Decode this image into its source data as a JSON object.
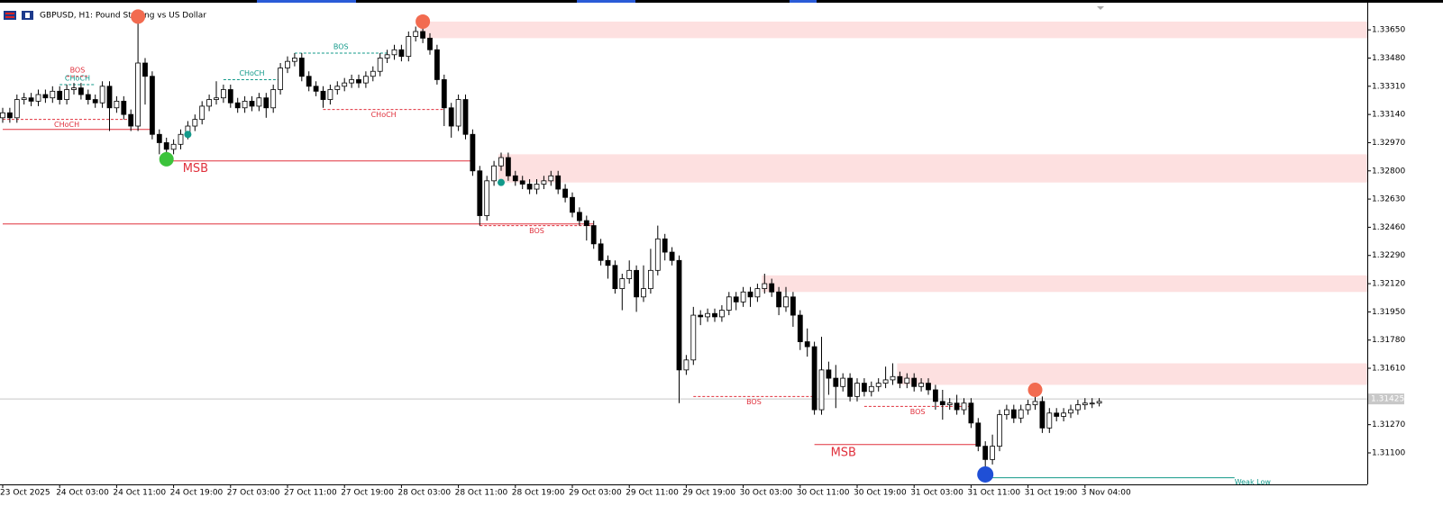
{
  "chart_data": {
    "type": "candlestick",
    "title": "GBPUSD, H1: Pound Sterling vs US Dollar",
    "ylim": [
      1.3091,
      1.3383
    ],
    "yticks": [
      {
        "value": 1.3365,
        "label": "1.33650"
      },
      {
        "value": 1.3348,
        "label": "1.33480"
      },
      {
        "value": 1.3331,
        "label": "1.33310"
      },
      {
        "value": 1.3314,
        "label": "1.33140"
      },
      {
        "value": 1.3297,
        "label": "1.32970"
      },
      {
        "value": 1.328,
        "label": "1.32800"
      },
      {
        "value": 1.3263,
        "label": "1.32630"
      },
      {
        "value": 1.3246,
        "label": "1.32460"
      },
      {
        "value": 1.3229,
        "label": "1.32290"
      },
      {
        "value": 1.3212,
        "label": "1.32120"
      },
      {
        "value": 1.3195,
        "label": "1.31950"
      },
      {
        "value": 1.3178,
        "label": "1.31780"
      },
      {
        "value": 1.3161,
        "label": "1.31610"
      },
      {
        "value": 1.3127,
        "label": "1.31270"
      },
      {
        "value": 1.311,
        "label": "1.31100"
      }
    ],
    "xticks": [
      {
        "value": 0,
        "label": "23 Oct 2025"
      },
      {
        "value": 8,
        "label": "24 Oct 03:00"
      },
      {
        "value": 16,
        "label": "24 Oct 11:00"
      },
      {
        "value": 24,
        "label": "24 Oct 19:00"
      },
      {
        "value": 32,
        "label": "27 Oct 03:00"
      },
      {
        "value": 40,
        "label": "27 Oct 11:00"
      },
      {
        "value": 48,
        "label": "27 Oct 19:00"
      },
      {
        "value": 56,
        "label": "28 Oct 03:00"
      },
      {
        "value": 64,
        "label": "28 Oct 11:00"
      },
      {
        "value": 72,
        "label": "28 Oct 19:00"
      },
      {
        "value": 80,
        "label": "29 Oct 03:00"
      },
      {
        "value": 88,
        "label": "29 Oct 11:00"
      },
      {
        "value": 96,
        "label": "29 Oct 19:00"
      },
      {
        "value": 104,
        "label": "30 Oct 03:00"
      },
      {
        "value": 112,
        "label": "30 Oct 11:00"
      },
      {
        "value": 120,
        "label": "30 Oct 19:00"
      },
      {
        "value": 128,
        "label": "31 Oct 03:00"
      },
      {
        "value": 136,
        "label": "31 Oct 11:00"
      },
      {
        "value": 144,
        "label": "31 Oct 19:00"
      },
      {
        "value": 152,
        "label": "3 Nov 04:00"
      }
    ],
    "current_price": 1.31425,
    "ohlc": [
      [
        1.3312,
        1.3318,
        1.3309,
        1.3315
      ],
      [
        1.3315,
        1.3318,
        1.3309,
        1.3312
      ],
      [
        1.3312,
        1.3326,
        1.3309,
        1.3323
      ],
      [
        1.3323,
        1.3327,
        1.332,
        1.3324
      ],
      [
        1.3324,
        1.3327,
        1.3319,
        1.3322
      ],
      [
        1.3322,
        1.3329,
        1.3319,
        1.3326
      ],
      [
        1.3326,
        1.3329,
        1.3321,
        1.3324
      ],
      [
        1.3324,
        1.3331,
        1.3321,
        1.3328
      ],
      [
        1.3328,
        1.3331,
        1.332,
        1.3323
      ],
      [
        1.3323,
        1.3332,
        1.332,
        1.3329
      ],
      [
        1.3329,
        1.3333,
        1.3326,
        1.333
      ],
      [
        1.333,
        1.3333,
        1.3323,
        1.3326
      ],
      [
        1.3326,
        1.3329,
        1.332,
        1.3323
      ],
      [
        1.3323,
        1.3326,
        1.3318,
        1.3321
      ],
      [
        1.3321,
        1.3334,
        1.3318,
        1.3331
      ],
      [
        1.3331,
        1.3334,
        1.3304,
        1.3318
      ],
      [
        1.3318,
        1.3325,
        1.3315,
        1.3322
      ],
      [
        1.3322,
        1.3325,
        1.3311,
        1.3314
      ],
      [
        1.3314,
        1.3317,
        1.3304,
        1.3307
      ],
      [
        1.3307,
        1.3375,
        1.3304,
        1.3345
      ],
      [
        1.3345,
        1.3348,
        1.332,
        1.3337
      ],
      [
        1.3337,
        1.334,
        1.3299,
        1.3302
      ],
      [
        1.3302,
        1.3305,
        1.329,
        1.3297
      ],
      [
        1.3297,
        1.33,
        1.3288,
        1.3293
      ],
      [
        1.3293,
        1.3299,
        1.329,
        1.3296
      ],
      [
        1.3296,
        1.3305,
        1.3293,
        1.3302
      ],
      [
        1.3302,
        1.331,
        1.3299,
        1.3307
      ],
      [
        1.3307,
        1.3314,
        1.3304,
        1.3311
      ],
      [
        1.3311,
        1.3322,
        1.3308,
        1.3319
      ],
      [
        1.3319,
        1.3326,
        1.3316,
        1.3323
      ],
      [
        1.3323,
        1.3334,
        1.332,
        1.3324
      ],
      [
        1.3324,
        1.3332,
        1.3321,
        1.3329
      ],
      [
        1.3329,
        1.3332,
        1.3318,
        1.3321
      ],
      [
        1.3321,
        1.3324,
        1.3315,
        1.3318
      ],
      [
        1.3318,
        1.3325,
        1.3315,
        1.3322
      ],
      [
        1.3322,
        1.3325,
        1.3316,
        1.3319
      ],
      [
        1.3319,
        1.3327,
        1.3316,
        1.3324
      ],
      [
        1.3324,
        1.3327,
        1.3312,
        1.3318
      ],
      [
        1.3318,
        1.3332,
        1.3315,
        1.3329
      ],
      [
        1.3329,
        1.3345,
        1.3326,
        1.3342
      ],
      [
        1.3342,
        1.3349,
        1.3339,
        1.3346
      ],
      [
        1.3346,
        1.3351,
        1.3343,
        1.3348
      ],
      [
        1.3348,
        1.3351,
        1.3334,
        1.3337
      ],
      [
        1.3337,
        1.334,
        1.3328,
        1.3331
      ],
      [
        1.3331,
        1.3334,
        1.3325,
        1.3328
      ],
      [
        1.3328,
        1.3331,
        1.3318,
        1.3323
      ],
      [
        1.3323,
        1.3332,
        1.332,
        1.3329
      ],
      [
        1.3329,
        1.3334,
        1.3326,
        1.3331
      ],
      [
        1.3331,
        1.3336,
        1.3328,
        1.3333
      ],
      [
        1.3333,
        1.3338,
        1.333,
        1.3335
      ],
      [
        1.3335,
        1.3338,
        1.333,
        1.3333
      ],
      [
        1.3333,
        1.334,
        1.333,
        1.3337
      ],
      [
        1.3337,
        1.3343,
        1.3334,
        1.334
      ],
      [
        1.334,
        1.3351,
        1.3337,
        1.3348
      ],
      [
        1.3348,
        1.3353,
        1.3345,
        1.335
      ],
      [
        1.335,
        1.3356,
        1.3347,
        1.3353
      ],
      [
        1.3353,
        1.3356,
        1.3346,
        1.3349
      ],
      [
        1.3349,
        1.3364,
        1.3346,
        1.3361
      ],
      [
        1.3361,
        1.3367,
        1.3358,
        1.3364
      ],
      [
        1.3364,
        1.3367,
        1.3357,
        1.336
      ],
      [
        1.336,
        1.3363,
        1.335,
        1.3353
      ],
      [
        1.3353,
        1.3356,
        1.3332,
        1.3335
      ],
      [
        1.3335,
        1.3338,
        1.3307,
        1.3318
      ],
      [
        1.3318,
        1.3321,
        1.33,
        1.3307
      ],
      [
        1.3307,
        1.3326,
        1.3304,
        1.3323
      ],
      [
        1.3323,
        1.3326,
        1.3299,
        1.3302
      ],
      [
        1.3302,
        1.3305,
        1.3277,
        1.328
      ],
      [
        1.328,
        1.3283,
        1.3247,
        1.3253
      ],
      [
        1.3253,
        1.3277,
        1.325,
        1.3274
      ],
      [
        1.3274,
        1.3286,
        1.3271,
        1.3283
      ],
      [
        1.3283,
        1.3291,
        1.328,
        1.3288
      ],
      [
        1.3288,
        1.3291,
        1.3274,
        1.3277
      ],
      [
        1.3277,
        1.328,
        1.3271,
        1.3274
      ],
      [
        1.3274,
        1.3277,
        1.3269,
        1.3272
      ],
      [
        1.3272,
        1.3275,
        1.3266,
        1.3269
      ],
      [
        1.3269,
        1.3275,
        1.3266,
        1.3272
      ],
      [
        1.3272,
        1.3277,
        1.3269,
        1.3274
      ],
      [
        1.3274,
        1.328,
        1.3271,
        1.3277
      ],
      [
        1.3277,
        1.328,
        1.3266,
        1.3269
      ],
      [
        1.3269,
        1.3272,
        1.3261,
        1.3264
      ],
      [
        1.3264,
        1.3267,
        1.3252,
        1.3255
      ],
      [
        1.3255,
        1.3258,
        1.3247,
        1.325
      ],
      [
        1.325,
        1.3253,
        1.3238,
        1.3247
      ],
      [
        1.3247,
        1.325,
        1.3233,
        1.3236
      ],
      [
        1.3236,
        1.3239,
        1.3223,
        1.3226
      ],
      [
        1.3226,
        1.3229,
        1.3215,
        1.3223
      ],
      [
        1.3223,
        1.3226,
        1.3206,
        1.3209
      ],
      [
        1.3209,
        1.3218,
        1.3196,
        1.3215
      ],
      [
        1.3215,
        1.3226,
        1.3212,
        1.322
      ],
      [
        1.322,
        1.3223,
        1.3195,
        1.3204
      ],
      [
        1.3204,
        1.3223,
        1.3201,
        1.3209
      ],
      [
        1.3209,
        1.3233,
        1.3206,
        1.322
      ],
      [
        1.322,
        1.3247,
        1.3217,
        1.3239
      ],
      [
        1.3239,
        1.3242,
        1.3226,
        1.3231
      ],
      [
        1.3231,
        1.3234,
        1.3223,
        1.3226
      ],
      [
        1.3226,
        1.3229,
        1.314,
        1.316
      ],
      [
        1.316,
        1.3169,
        1.3157,
        1.3166
      ],
      [
        1.3166,
        1.3198,
        1.3163,
        1.3193
      ],
      [
        1.3193,
        1.3196,
        1.3187,
        1.3192
      ],
      [
        1.3192,
        1.3197,
        1.3189,
        1.3194
      ],
      [
        1.3194,
        1.3197,
        1.3189,
        1.3192
      ],
      [
        1.3192,
        1.3199,
        1.3189,
        1.3196
      ],
      [
        1.3196,
        1.3207,
        1.3193,
        1.3204
      ],
      [
        1.3204,
        1.3207,
        1.3196,
        1.3201
      ],
      [
        1.3201,
        1.321,
        1.3198,
        1.3207
      ],
      [
        1.3207,
        1.321,
        1.3198,
        1.3204
      ],
      [
        1.3204,
        1.3212,
        1.3201,
        1.3209
      ],
      [
        1.3209,
        1.3218,
        1.3206,
        1.3212
      ],
      [
        1.3212,
        1.3215,
        1.3204,
        1.3207
      ],
      [
        1.3207,
        1.321,
        1.3193,
        1.3198
      ],
      [
        1.3198,
        1.321,
        1.3195,
        1.3204
      ],
      [
        1.3204,
        1.3207,
        1.3186,
        1.3193
      ],
      [
        1.3193,
        1.3196,
        1.3172,
        1.3177
      ],
      [
        1.3177,
        1.3185,
        1.3168,
        1.3174
      ],
      [
        1.3174,
        1.3177,
        1.3133,
        1.3136
      ],
      [
        1.3136,
        1.318,
        1.3133,
        1.316
      ],
      [
        1.316,
        1.3165,
        1.3145,
        1.3155
      ],
      [
        1.3155,
        1.3163,
        1.3137,
        1.315
      ],
      [
        1.315,
        1.3158,
        1.3147,
        1.3155
      ],
      [
        1.3155,
        1.3158,
        1.3141,
        1.3144
      ],
      [
        1.3144,
        1.3155,
        1.3141,
        1.3152
      ],
      [
        1.3152,
        1.3155,
        1.3144,
        1.3147
      ],
      [
        1.3147,
        1.3153,
        1.3144,
        1.315
      ],
      [
        1.315,
        1.3155,
        1.3147,
        1.3152
      ],
      [
        1.3152,
        1.3162,
        1.3149,
        1.3154
      ],
      [
        1.3154,
        1.3164,
        1.3151,
        1.3156
      ],
      [
        1.3156,
        1.3159,
        1.3149,
        1.3152
      ],
      [
        1.3152,
        1.3158,
        1.3149,
        1.3155
      ],
      [
        1.3155,
        1.3158,
        1.3147,
        1.315
      ],
      [
        1.315,
        1.3155,
        1.3147,
        1.3152
      ],
      [
        1.3152,
        1.3155,
        1.3145,
        1.3148
      ],
      [
        1.3148,
        1.3151,
        1.3136,
        1.3141
      ],
      [
        1.3141,
        1.3148,
        1.313,
        1.3139
      ],
      [
        1.3139,
        1.3143,
        1.3136,
        1.314
      ],
      [
        1.314,
        1.3145,
        1.3133,
        1.3136
      ],
      [
        1.3136,
        1.3143,
        1.3133,
        1.314
      ],
      [
        1.314,
        1.3143,
        1.3125,
        1.3128
      ],
      [
        1.3128,
        1.3131,
        1.3111,
        1.3114
      ],
      [
        1.3114,
        1.3117,
        1.31,
        1.3106
      ],
      [
        1.3106,
        1.3121,
        1.3103,
        1.3114
      ],
      [
        1.3114,
        1.3136,
        1.3111,
        1.3133
      ],
      [
        1.3133,
        1.3139,
        1.313,
        1.3136
      ],
      [
        1.3136,
        1.3139,
        1.3128,
        1.3131
      ],
      [
        1.3131,
        1.3139,
        1.3128,
        1.3136
      ],
      [
        1.3136,
        1.3142,
        1.3133,
        1.3139
      ],
      [
        1.3139,
        1.315,
        1.3136,
        1.3141
      ],
      [
        1.3141,
        1.3144,
        1.3122,
        1.3125
      ],
      [
        1.3125,
        1.3137,
        1.3122,
        1.3134
      ],
      [
        1.3134,
        1.3137,
        1.3129,
        1.3132
      ],
      [
        1.3132,
        1.3137,
        1.3129,
        1.3134
      ],
      [
        1.3134,
        1.3139,
        1.3131,
        1.3136
      ],
      [
        1.3136,
        1.3142,
        1.3133,
        1.3139
      ],
      [
        1.3139,
        1.3143,
        1.3136,
        1.314
      ],
      [
        1.314,
        1.3143,
        1.3137,
        1.314
      ],
      [
        1.314,
        1.3143,
        1.3138,
        1.3141
      ]
    ],
    "zones": [
      {
        "from": 59,
        "top": 1.337,
        "bottom": 1.336
      },
      {
        "from": 70,
        "top": 1.329,
        "bottom": 1.3273
      },
      {
        "from": 107,
        "top": 1.3217,
        "bottom": 1.3207
      },
      {
        "from": 126,
        "top": 1.3164,
        "bottom": 1.3151
      }
    ],
    "levels": [
      {
        "label": "CHoCH",
        "price": 1.3311,
        "from": 0,
        "to": 18,
        "color": "#e0303c",
        "dashed": true,
        "side": "below"
      },
      {
        "price": 1.3305,
        "from": 0,
        "to": 21,
        "color": "#e0303c",
        "dashed": false
      },
      {
        "label": "CHoCH",
        "price": 1.3332,
        "from": 8,
        "to": 13,
        "color": "#12998a",
        "dashed": true,
        "side": "above"
      },
      {
        "label": "BOS",
        "price": 1.3337,
        "from": 9,
        "to": 12,
        "color": "#e0303c",
        "dashed": true,
        "side": "above"
      },
      {
        "label": "CHoCH",
        "price": 1.3335,
        "from": 31,
        "to": 39,
        "color": "#12998a",
        "dashed": true,
        "side": "above"
      },
      {
        "label": "BOS",
        "price": 1.3351,
        "from": 41,
        "to": 54,
        "color": "#12998a",
        "dashed": true,
        "side": "above"
      },
      {
        "label": "CHoCH",
        "price": 1.3317,
        "from": 45,
        "to": 62,
        "color": "#e0303c",
        "dashed": true,
        "side": "below"
      },
      {
        "label": "MSB",
        "price": 1.3286,
        "from": 23,
        "to": 66,
        "color": "#e0303c",
        "dashed": false,
        "side": "below",
        "big": true
      },
      {
        "price": 1.3248,
        "from": 0,
        "to": 83,
        "color": "#e0303c",
        "dashed": false
      },
      {
        "label": "BOS",
        "price": 1.3247,
        "from": 67,
        "to": 83,
        "color": "#e0303c",
        "dashed": true,
        "side": "below"
      },
      {
        "label": "BOS",
        "price": 1.3144,
        "from": 97,
        "to": 114,
        "color": "#e0303c",
        "dashed": true,
        "side": "below"
      },
      {
        "label": "BOS",
        "price": 1.3138,
        "from": 121,
        "to": 136,
        "color": "#e0303c",
        "dashed": true,
        "side": "below"
      },
      {
        "label": "MSB",
        "price": 1.3115,
        "from": 114,
        "to": 137,
        "color": "#e0303c",
        "dashed": false,
        "side": "below",
        "big": true
      },
      {
        "label": "Weak Low",
        "price": 1.3095,
        "from": 138,
        "to": 173,
        "color": "#12998a",
        "dashed": false,
        "side": "end"
      }
    ],
    "markers": [
      {
        "at": 19,
        "price": 1.3373,
        "color": "#f26b50",
        "size": 8
      },
      {
        "at": 59,
        "price": 1.337,
        "color": "#f26b50",
        "size": 8
      },
      {
        "at": 23,
        "price": 1.3287,
        "color": "#3cc33c",
        "size": 8
      },
      {
        "at": 26,
        "price": 1.3302,
        "color": "#12998a",
        "size": 4
      },
      {
        "at": 70,
        "price": 1.3273,
        "color": "#12998a",
        "size": 4
      },
      {
        "at": 145,
        "price": 1.3148,
        "color": "#f26b50",
        "size": 8
      },
      {
        "at": 138,
        "price": 1.3097,
        "color": "#1f4fd6",
        "size": 9
      }
    ]
  }
}
